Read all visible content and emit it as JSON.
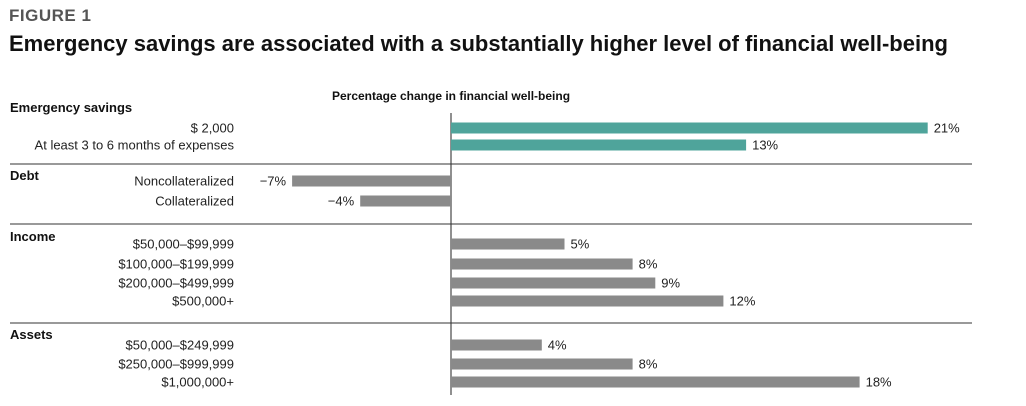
{
  "figure_label": "FIGURE 1",
  "title": "Emergency savings are associated with a substantially higher level of financial well-being",
  "chart_data": {
    "type": "bar",
    "orientation": "horizontal",
    "xlabel": "Percentage change in financial well-being",
    "xlim": [
      -0.08,
      0.22
    ],
    "groups": [
      {
        "name": "Emergency savings",
        "color": "#4fa49b",
        "items": [
          {
            "label": "$ 2,000",
            "value": 21,
            "value_label": "21%"
          },
          {
            "label": "At least 3 to 6 months of expenses",
            "value": 13,
            "value_label": "13%"
          }
        ]
      },
      {
        "name": "Debt",
        "color": "#8a8a8a",
        "items": [
          {
            "label": "Noncollateralized",
            "value": -7,
            "value_label": "−7%"
          },
          {
            "label": "Collateralized",
            "value": -4,
            "value_label": "−4%"
          }
        ]
      },
      {
        "name": "Income",
        "color": "#8a8a8a",
        "items": [
          {
            "label": "$50,000–$99,999",
            "value": 5,
            "value_label": "5%"
          },
          {
            "label": "$100,000–$199,999",
            "value": 8,
            "value_label": "8%"
          },
          {
            "label": "$200,000–$499,999",
            "value": 9,
            "value_label": "9%"
          },
          {
            "label": "$500,000+",
            "value": 12,
            "value_label": "12%"
          }
        ]
      },
      {
        "name": "Assets",
        "color": "#8a8a8a",
        "items": [
          {
            "label": "$50,000–$249,999",
            "value": 4,
            "value_label": "4%"
          },
          {
            "label": "$250,000–$999,999",
            "value": 8,
            "value_label": "8%"
          },
          {
            "label": "$1,000,000+",
            "value": 18,
            "value_label": "18%"
          }
        ]
      }
    ]
  }
}
